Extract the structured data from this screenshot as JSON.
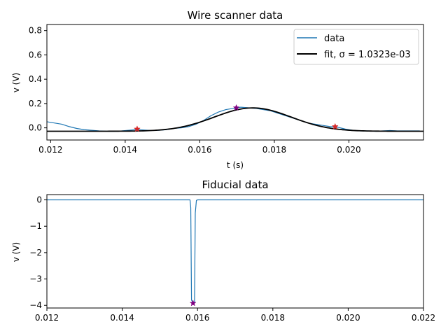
{
  "chart_data": [
    {
      "type": "line",
      "title": "Wire scanner data",
      "xlabel": "t (s)",
      "ylabel": "v (V)",
      "xlim": [
        0.0119,
        0.022
      ],
      "ylim": [
        -0.1,
        0.85
      ],
      "x_ticks": [
        "0.012",
        "0.014",
        "0.016",
        "0.018",
        "0.020"
      ],
      "x_tick_values": [
        0.012,
        0.014,
        0.016,
        0.018,
        0.02
      ],
      "y_ticks": [
        "0.0",
        "0.2",
        "0.4",
        "0.6",
        "0.8"
      ],
      "y_tick_values": [
        0.0,
        0.2,
        0.4,
        0.6,
        0.8
      ],
      "grid": false,
      "legend_position": "top-right",
      "series": [
        {
          "name": "data",
          "color": "#1f77b4",
          "x": [
            0.0119,
            0.0121,
            0.0123,
            0.0125,
            0.0127,
            0.0129,
            0.0131,
            0.0133,
            0.0135,
            0.0137,
            0.0139,
            0.0141,
            0.0143,
            0.0145,
            0.0147,
            0.0149,
            0.0151,
            0.0153,
            0.0155,
            0.0157,
            0.0159,
            0.0161,
            0.0163,
            0.0165,
            0.0167,
            0.0169,
            0.0171,
            0.0173,
            0.0175,
            0.0177,
            0.0179,
            0.0181,
            0.0183,
            0.0185,
            0.0187,
            0.0189,
            0.0191,
            0.0193,
            0.0195,
            0.0197,
            0.0199,
            0.0201,
            0.0203,
            0.0205,
            0.0207,
            0.0209,
            0.0211,
            0.0213,
            0.0215,
            0.0217,
            0.0219
          ],
          "y": [
            0.05,
            0.04,
            0.03,
            0.01,
            -0.005,
            -0.015,
            -0.02,
            -0.025,
            -0.028,
            -0.028,
            -0.025,
            -0.02,
            -0.015,
            -0.018,
            -0.022,
            -0.02,
            -0.015,
            -0.005,
            0.0,
            0.01,
            0.03,
            0.06,
            0.1,
            0.13,
            0.15,
            0.16,
            0.17,
            0.165,
            0.16,
            0.15,
            0.14,
            0.12,
            0.1,
            0.08,
            0.06,
            0.04,
            0.03,
            0.02,
            0.01,
            0.005,
            -0.01,
            -0.02,
            -0.025,
            -0.025,
            -0.028,
            -0.025,
            -0.022,
            -0.025,
            -0.025,
            -0.025,
            -0.025
          ]
        },
        {
          "name": "fit, σ = 1.0323e-03",
          "color": "#000000",
          "gaussian": {
            "baseline": -0.028,
            "amplitude": 0.192,
            "mu": 0.01742,
            "sigma": 0.0010323
          }
        }
      ],
      "markers": [
        {
          "x": 0.01432,
          "y": -0.01,
          "color": "#d62728"
        },
        {
          "x": 0.01698,
          "y": 0.165,
          "color": "#800080"
        },
        {
          "x": 0.01963,
          "y": 0.01,
          "color": "#d62728"
        }
      ]
    },
    {
      "type": "line",
      "title": "Fiducial data",
      "xlabel": "",
      "ylabel": "v (V)",
      "xlim": [
        0.012,
        0.022
      ],
      "ylim": [
        -4.1,
        0.2
      ],
      "x_ticks": [
        "0.012",
        "0.014",
        "0.016",
        "0.018",
        "0.020",
        "0.022"
      ],
      "x_tick_values": [
        0.012,
        0.014,
        0.016,
        0.018,
        0.02,
        0.022
      ],
      "y_ticks": [
        "0",
        "−1",
        "−2",
        "−3",
        "−4"
      ],
      "y_tick_values": [
        0,
        -1,
        -2,
        -3,
        -4
      ],
      "grid": false,
      "series": [
        {
          "color": "#1f77b4",
          "x": [
            0.012,
            0.0158,
            0.01582,
            0.01584,
            0.01586,
            0.01588,
            0.0159,
            0.01592,
            0.01594,
            0.01597,
            0.016,
            0.022
          ],
          "y": [
            0.0,
            0.0,
            -0.3,
            -3.8,
            -3.85,
            -3.9,
            -3.88,
            -3.9,
            -0.5,
            -0.02,
            0.0,
            0.0
          ]
        }
      ],
      "markers": [
        {
          "x": 0.01588,
          "y": -3.92,
          "color": "#800080"
        }
      ]
    }
  ]
}
